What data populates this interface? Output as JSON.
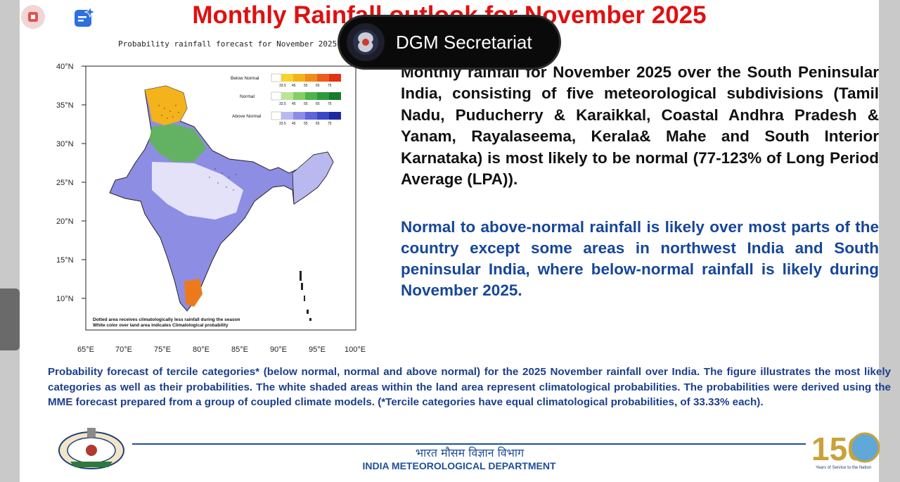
{
  "slide": {
    "title": "Monthly Rainfall outlook for November 2025",
    "caller_label": "DGM Secretariat"
  },
  "map": {
    "title": "Probability rainfall forecast for November 2025",
    "lat_labels": [
      "40°N",
      "35°N",
      "30°N",
      "25°N",
      "20°N",
      "15°N",
      "10°N"
    ],
    "lon_labels": [
      "65°E",
      "70°E",
      "75°E",
      "80°E",
      "85°E",
      "90°E",
      "95°E",
      "100°E"
    ],
    "legend": [
      {
        "label": "Below Normal",
        "colors": [
          "#ffffff",
          "#f6d22c",
          "#f4b21c",
          "#f18b1c",
          "#ec5d1c",
          "#e23214"
        ],
        "ticks": [
          "33.5",
          "45",
          "55",
          "65",
          "75"
        ]
      },
      {
        "label": "Normal",
        "colors": [
          "#ffffff",
          "#bde39a",
          "#86cf66",
          "#4fb24a",
          "#2e9a3c",
          "#177a2e"
        ],
        "ticks": [
          "33.5",
          "45",
          "55",
          "65",
          "75"
        ]
      },
      {
        "label": "Above Normal",
        "colors": [
          "#ffffff",
          "#b9b8ef",
          "#8c8ce6",
          "#5e64da",
          "#3a48c8",
          "#1c2aa0"
        ],
        "ticks": [
          "33.5",
          "45",
          "55",
          "65",
          "75"
        ]
      }
    ],
    "notes": [
      "Dotted area receives climatologically less rainfall during the season",
      "White color over land area indicates Climatological probability"
    ]
  },
  "description": {
    "para1": "Monthly rainfall for November 2025 over the South Peninsular India, consisting of five meteorological subdivisions (Tamil Nadu, Puducherry & Karaikkal, Coastal Andhra Pradesh & Yanam, Rayalaseema, Kerala& Mahe and South Interior Karnataka) is most likely to be normal (77-123% of Long Period Average (LPA)).",
    "para2": "Normal to above-normal rainfall is likely over most parts of the country except some areas in northwest India and South peninsular India, where below-normal rainfall is likely during November 2025."
  },
  "caption": "Probability forecast of tercile categories* (below normal, normal and above normal) for the 2025 November rainfall over India. The figure illustrates the most likely categories as well as their probabilities. The white shaded areas within the land area represent climatological probabilities. The probabilities were derived using the MME forecast prepared from a group of coupled climate models. (*Tercile categories have equal climatological probabilities, of 33.33% each).",
  "footer": {
    "hindi": "भारत मौसम विज्ञान विभाग",
    "english": "INDIA METEOROLOGICAL DEPARTMENT",
    "logo_text": "150",
    "logo_tag": "Years of Service to the Nation"
  },
  "colors": {
    "title_red": "#e01010",
    "text_blue": "#16469a",
    "dark": "#111111"
  }
}
